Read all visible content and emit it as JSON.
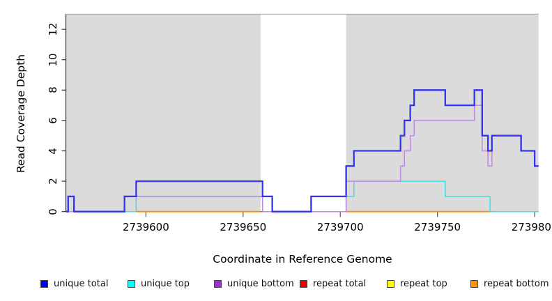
{
  "chart_data": {
    "type": "line",
    "subtype": "step-coverage-plot",
    "title": "",
    "xlabel": "Coordinate in Reference Genome",
    "ylabel": "Read Coverage Depth",
    "xlim": [
      2739559,
      2739802
    ],
    "ylim": [
      0,
      13
    ],
    "x_ticks": [
      2739600,
      2739650,
      2739700,
      2739750,
      2739800
    ],
    "y_ticks": [
      0,
      2,
      4,
      6,
      8,
      10,
      12
    ],
    "grid": false,
    "background_color": "#ffffff",
    "shaded_regions": [
      {
        "from": 2739559,
        "to": 2739659,
        "color": "#dbdbdb"
      },
      {
        "from": 2739703,
        "to": 2739802,
        "color": "#dbdbdb"
      }
    ],
    "top_border_color": "#ababab",
    "series": [
      {
        "name": "unique top",
        "color": "#3fdce2",
        "width": 1.5,
        "points": [
          [
            2739559,
            0
          ],
          [
            2739595,
            1
          ],
          [
            2739660,
            0
          ],
          [
            2739703,
            1
          ],
          [
            2739707,
            2
          ],
          [
            2739754,
            1
          ],
          [
            2739777,
            0
          ],
          [
            2739802,
            0
          ]
        ]
      },
      {
        "name": "unique bottom",
        "color": "#be88de",
        "width": 1.5,
        "points": [
          [
            2739559,
            0
          ],
          [
            2739589,
            1
          ],
          [
            2739660,
            0
          ],
          [
            2739703,
            2
          ],
          [
            2739731,
            3
          ],
          [
            2739733,
            4
          ],
          [
            2739736,
            5
          ],
          [
            2739738,
            6
          ],
          [
            2739769,
            7
          ],
          [
            2739773,
            4
          ],
          [
            2739776,
            3
          ],
          [
            2739778,
            5
          ],
          [
            2739793,
            4
          ],
          [
            2739800,
            3
          ],
          [
            2739802,
            3
          ]
        ]
      },
      {
        "name": "unique total",
        "color": "#3333ee",
        "width": 2.3,
        "points": [
          [
            2739559,
            0
          ],
          [
            2739560,
            1
          ],
          [
            2739563,
            0
          ],
          [
            2739589,
            1
          ],
          [
            2739595,
            2
          ],
          [
            2739660,
            1
          ],
          [
            2739665,
            0
          ],
          [
            2739685,
            1
          ],
          [
            2739703,
            3
          ],
          [
            2739707,
            4
          ],
          [
            2739731,
            5
          ],
          [
            2739733,
            6
          ],
          [
            2739736,
            7
          ],
          [
            2739738,
            8
          ],
          [
            2739754,
            7
          ],
          [
            2739769,
            8
          ],
          [
            2739773,
            5
          ],
          [
            2739776,
            4
          ],
          [
            2739778,
            5
          ],
          [
            2739793,
            4
          ],
          [
            2739800,
            3
          ],
          [
            2739802,
            3
          ]
        ]
      }
    ],
    "baseline_segments": [
      {
        "from": 2739559,
        "to": 2739802,
        "color": "#e03a5c",
        "width": 1.4,
        "note": "repeat total at depth 0"
      },
      {
        "from": 2739589,
        "to": 2739595,
        "color": "#66c985",
        "width": 1.5,
        "note": "repeat top / unique top overlap at 0"
      },
      {
        "from": 2739778,
        "to": 2739802,
        "color": "#66c985",
        "width": 1.5,
        "note": "repeat top / unique top overlap at 0"
      },
      {
        "from": 2739595,
        "to": 2739659,
        "color": "#ff8c00",
        "width": 1.8,
        "note": "repeat bottom at 0"
      },
      {
        "from": 2739703,
        "to": 2739778,
        "color": "#ff8c00",
        "width": 1.8,
        "note": "repeat bottom at 0"
      },
      {
        "from": 2739563,
        "to": 2739589,
        "color": "#6655dd",
        "width": 1.7,
        "note": "unique total at 0"
      },
      {
        "from": 2739665,
        "to": 2739685,
        "color": "#6655dd",
        "width": 1.7,
        "note": "unique total at 0"
      }
    ],
    "legend": [
      {
        "label": "unique total",
        "color": "#0000ee"
      },
      {
        "label": "unique top",
        "color": "#00ffff"
      },
      {
        "label": "unique bottom",
        "color": "#9932cc"
      },
      {
        "label": "repeat total",
        "color": "#ee0000"
      },
      {
        "label": "repeat top",
        "color": "#ffff00"
      },
      {
        "label": "repeat bottom",
        "color": "#ff9100"
      }
    ],
    "legend_position": "bottom"
  }
}
